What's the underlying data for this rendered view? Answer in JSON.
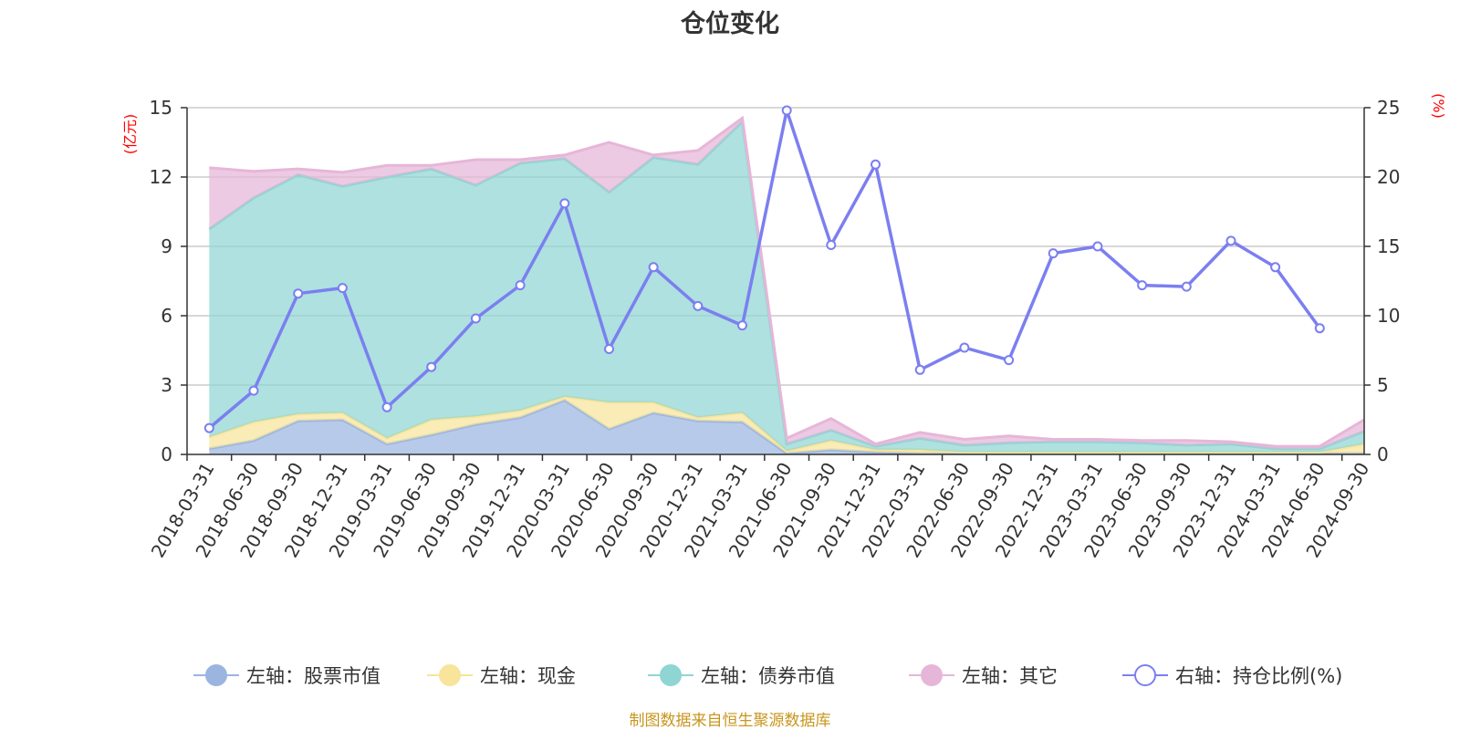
{
  "title": "仓位变化",
  "source_note": "制图数据来自恒生聚源数据库",
  "colors": {
    "stock": "#9bb5e0",
    "cash": "#f8e49a",
    "bond": "#8fd5d3",
    "other": "#e6b6d8",
    "ratio": "#7b7ff0",
    "unit_label": "#ff0000",
    "source_note": "#c8961e",
    "axis": "#333333",
    "grid": "#cccccc"
  },
  "chart_data": {
    "type": "area",
    "title": "仓位变化",
    "categories": [
      "2018-03-31",
      "2018-06-30",
      "2018-09-30",
      "2018-12-31",
      "2019-03-31",
      "2019-06-30",
      "2019-09-30",
      "2019-12-31",
      "2020-03-31",
      "2020-06-30",
      "2020-09-30",
      "2020-12-31",
      "2021-03-31",
      "2021-06-30",
      "2021-09-30",
      "2021-12-31",
      "2022-03-31",
      "2022-06-30",
      "2022-09-30",
      "2022-12-31",
      "2023-03-31",
      "2023-06-30",
      "2023-09-30",
      "2023-12-31",
      "2024-03-31",
      "2024-06-30",
      "2024-09-30"
    ],
    "left_axis": {
      "unit": "(亿元)",
      "min": 0,
      "max": 15,
      "ticks": [
        "0",
        "3",
        "6",
        "9",
        "12",
        "15"
      ]
    },
    "right_axis": {
      "unit": "(%)",
      "min": 0,
      "max": 25,
      "ticks": [
        "0",
        "5",
        "10",
        "15",
        "20",
        "25"
      ]
    },
    "grid": true,
    "legend_position": "bottom",
    "stacked_series": [
      {
        "name": "左轴：股票市值",
        "color": "#9bb5e0",
        "values": [
          0.25,
          0.6,
          1.45,
          1.5,
          0.45,
          0.85,
          1.3,
          1.6,
          2.35,
          1.1,
          1.8,
          1.45,
          1.4,
          0.05,
          0.2,
          0.1,
          0.05,
          0.05,
          0.05,
          0.05,
          0.05,
          0.05,
          0.05,
          0.05,
          0.05,
          0.05,
          0.05
        ]
      },
      {
        "name": "左轴：现金",
        "color": "#f8e49a",
        "values": [
          0.5,
          0.8,
          0.3,
          0.3,
          0.25,
          0.65,
          0.35,
          0.3,
          0.15,
          1.15,
          0.45,
          0.15,
          0.4,
          0.1,
          0.4,
          0.1,
          0.15,
          0.05,
          0.05,
          0.05,
          0.05,
          0.05,
          0.05,
          0.05,
          0.05,
          0.05,
          0.4
        ]
      },
      {
        "name": "左轴：债券市值",
        "color": "#8fd5d3",
        "values": [
          9.0,
          9.7,
          10.35,
          9.8,
          11.3,
          10.85,
          10.0,
          10.7,
          10.3,
          9.1,
          10.6,
          10.95,
          12.6,
          0.3,
          0.45,
          0.15,
          0.5,
          0.3,
          0.4,
          0.45,
          0.45,
          0.4,
          0.3,
          0.35,
          0.15,
          0.15,
          0.55
        ]
      },
      {
        "name": "左轴：其它",
        "color": "#e6b6d8",
        "values": [
          2.65,
          1.15,
          0.25,
          0.6,
          0.5,
          0.15,
          1.1,
          0.15,
          0.15,
          2.15,
          0.1,
          0.6,
          0.15,
          0.25,
          0.5,
          0.1,
          0.25,
          0.25,
          0.3,
          0.1,
          0.1,
          0.1,
          0.2,
          0.1,
          0.1,
          0.1,
          0.5
        ]
      }
    ],
    "line_series": {
      "name": "右轴：持仓比例(%)",
      "color": "#7b7ff0",
      "axis": "right",
      "values": [
        1.9,
        4.6,
        11.6,
        12.0,
        3.4,
        6.3,
        9.8,
        12.2,
        18.1,
        7.6,
        13.5,
        10.7,
        9.3,
        24.8,
        15.1,
        20.9,
        6.1,
        7.7,
        6.8,
        14.5,
        15.0,
        12.2,
        12.1,
        15.4,
        13.5,
        9.1,
        null
      ]
    }
  }
}
